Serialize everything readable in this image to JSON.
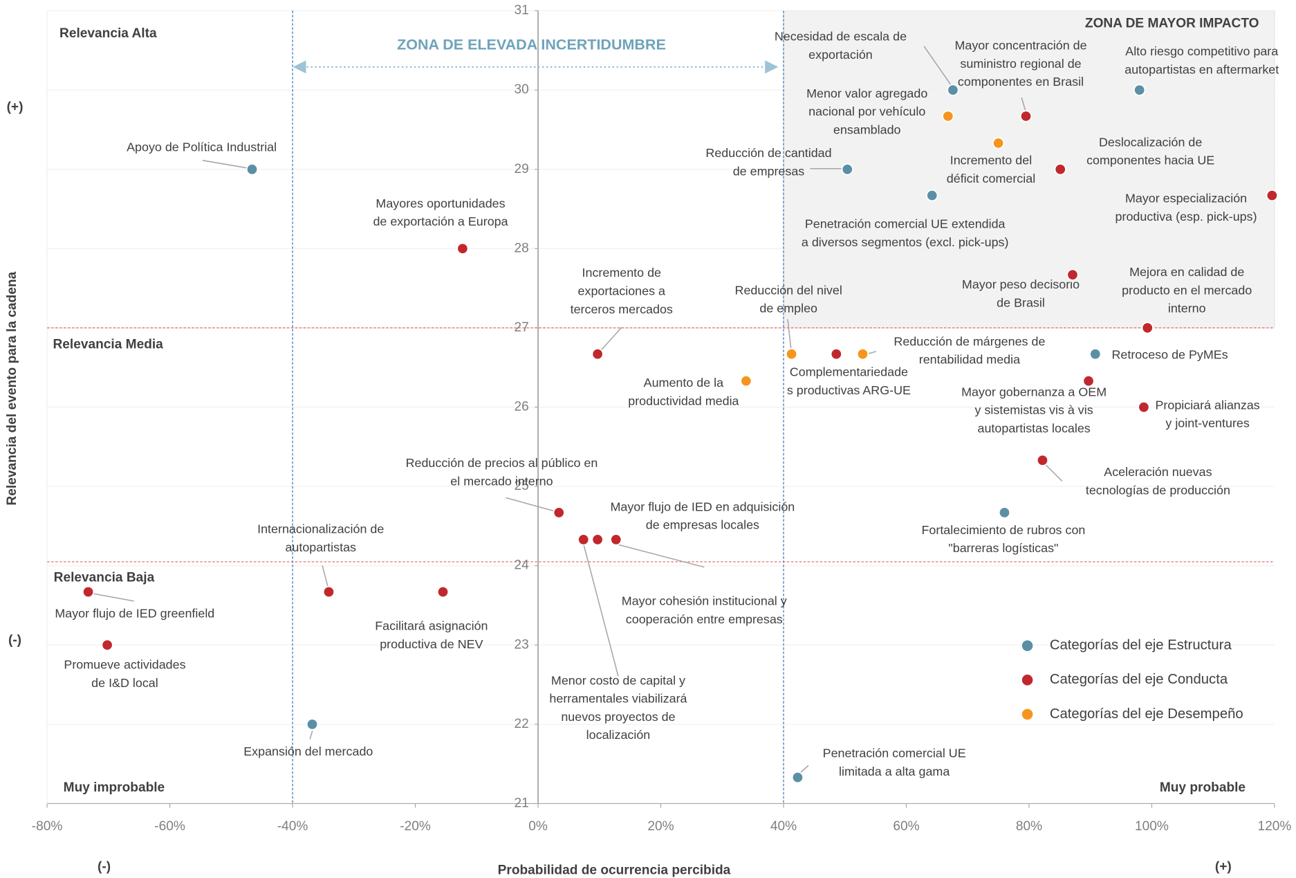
{
  "chart_data": {
    "type": "scatter",
    "x_axis_label": "Probabilidad de ocurrencia percibida",
    "y_axis_label": "Relevancia del evento para la cadena",
    "xlim": [
      -80,
      120
    ],
    "ylim": [
      21,
      31
    ],
    "xticks": [
      {
        "value": -80,
        "label": "-80%"
      },
      {
        "value": -60,
        "label": "-60%"
      },
      {
        "value": -40,
        "label": "-40%"
      },
      {
        "value": -20,
        "label": "-20%"
      },
      {
        "value": 0,
        "label": "0%"
      },
      {
        "value": 20,
        "label": "20%"
      },
      {
        "value": 40,
        "label": "40%"
      },
      {
        "value": 60,
        "label": "60%"
      },
      {
        "value": 80,
        "label": "80%"
      },
      {
        "value": 100,
        "label": "100%"
      },
      {
        "value": 120,
        "label": "120%"
      }
    ],
    "yticks": [
      21,
      22,
      23,
      24,
      25,
      26,
      27,
      28,
      29,
      30,
      31
    ],
    "grid": true,
    "legend": "bottom-right",
    "shaded_zone": {
      "xlim": [
        40,
        120
      ],
      "ylim": [
        27,
        31
      ],
      "color": "#f2f2f2"
    },
    "reference_lines": {
      "x": [
        -40,
        40
      ],
      "y": [
        27,
        24.05
      ],
      "x_color": "#2e75b6",
      "y_color": "#e06666"
    },
    "annotations": {
      "zone_high": "ZONA DE MAYOR IMPACTO",
      "zone_uncertainty": "ZONA DE ELEVADA INCERTIDUMBRE",
      "relevance": [
        "Relevancia Alta",
        "Relevancia Media",
        "Relevancia Baja"
      ],
      "probability": [
        "Muy improbable",
        "Muy probable"
      ],
      "y_signs": [
        "(+)",
        "(-)"
      ],
      "x_signs": [
        "(-)",
        "(+)"
      ]
    },
    "series": [
      {
        "name": "Categorías del eje Estructura",
        "color": "#5b8fa6",
        "x": [
          -46.6,
          67.6,
          98,
          50.4,
          64.2,
          90.8,
          76,
          -36.8,
          42.3
        ],
        "values": [
          29,
          30,
          30,
          29,
          28.67,
          26.67,
          24.67,
          22,
          21.33
        ],
        "labels": [
          [
            "Apoyo de Política Industrial"
          ],
          [
            "Necesidad de escala de",
            "exportación"
          ],
          [
            "Alto riesgo competitivo para",
            "autopartistas en aftermarket"
          ],
          [
            "Reducción de cantidad",
            "de empresas"
          ],
          [
            "Penetración comercial UE extendida",
            "a diversos segmentos (excl. pick-ups)"
          ],
          [
            "Retroceso de PyMEs"
          ],
          [
            "Fortalecimiento de rubros con",
            "\"barreras logísticas\""
          ],
          [
            "Expansión del mercado"
          ],
          [
            "Penetración comercial UE",
            "limitada a alta gama"
          ]
        ]
      },
      {
        "name": "Categorías del eje Conducta",
        "color": "#c0282d",
        "x": [
          79.5,
          85.1,
          119.6,
          87.1,
          99.3,
          -12.3,
          9.7,
          48.6,
          89.7,
          98.7,
          82.2,
          3.4,
          7.4,
          9.7,
          12.7,
          -34.1,
          -15.5,
          -73.3,
          -70.2
        ],
        "values": [
          29.67,
          29,
          28.67,
          27.67,
          27,
          28,
          26.67,
          26.67,
          26.33,
          26,
          25.33,
          24.67,
          24.33,
          24.33,
          24.33,
          23.67,
          23.67,
          23.67,
          23
        ],
        "labels": [
          [
            "Mayor concentración de",
            "suministro regional de",
            "componentes en Brasil"
          ],
          [
            "Deslocalización de",
            "componentes hacia UE"
          ],
          [
            "Mayor especialización",
            "productiva (esp. pick-ups)"
          ],
          [
            "Mayor peso decisorio",
            "de Brasil"
          ],
          [
            "Mejora en calidad de",
            "producto en el mercado",
            "interno"
          ],
          [
            "Mayores oportunidades",
            "de exportación a Europa"
          ],
          [
            "Incremento de",
            "exportaciones a",
            "terceros mercados"
          ],
          [
            "Complementariedade",
            "s productivas ARG-UE"
          ],
          [
            "Mayor gobernanza a OEM",
            "y sistemistas vis à vis",
            "autopartistas locales"
          ],
          [
            "Propiciará alianzas",
            "y joint-ventures"
          ],
          [
            "Aceleración nuevas",
            "tecnologías de producción"
          ],
          [
            "Reducción de precios al público en",
            "el mercado interno"
          ],
          [
            "Menor costo de capital y",
            "herramentales viabilizará",
            "nuevos proyectos de",
            "localización"
          ],
          [
            "Mayor flujo de IED en adquisición",
            "de empresas locales"
          ],
          [
            "Mayor cohesión institucional y",
            "cooperación entre empresas"
          ],
          [
            "Internacionalización de",
            "autopartistas"
          ],
          [
            "Facilitará asignación",
            "productiva de NEV"
          ],
          [
            "Mayor flujo de IED greenfield"
          ],
          [
            "Promueve actividades",
            "de I&D local"
          ]
        ]
      },
      {
        "name": "Categorías del eje Desempeño",
        "color": "#f7941d",
        "x": [
          66.8,
          75,
          41.3,
          52.9,
          33.9
        ],
        "values": [
          29.67,
          29.33,
          26.67,
          26.67,
          26.33
        ],
        "labels": [
          [
            "Menor valor agregado",
            "nacional por vehículo",
            "ensamblado"
          ],
          [
            "Incremento del",
            "déficit comercial"
          ],
          [
            "Reducción del nivel",
            "de empleo"
          ],
          [
            "Reducción de márgenes de",
            "rentabilidad media"
          ],
          [
            "Aumento de la",
            "productividad media"
          ]
        ]
      }
    ]
  }
}
